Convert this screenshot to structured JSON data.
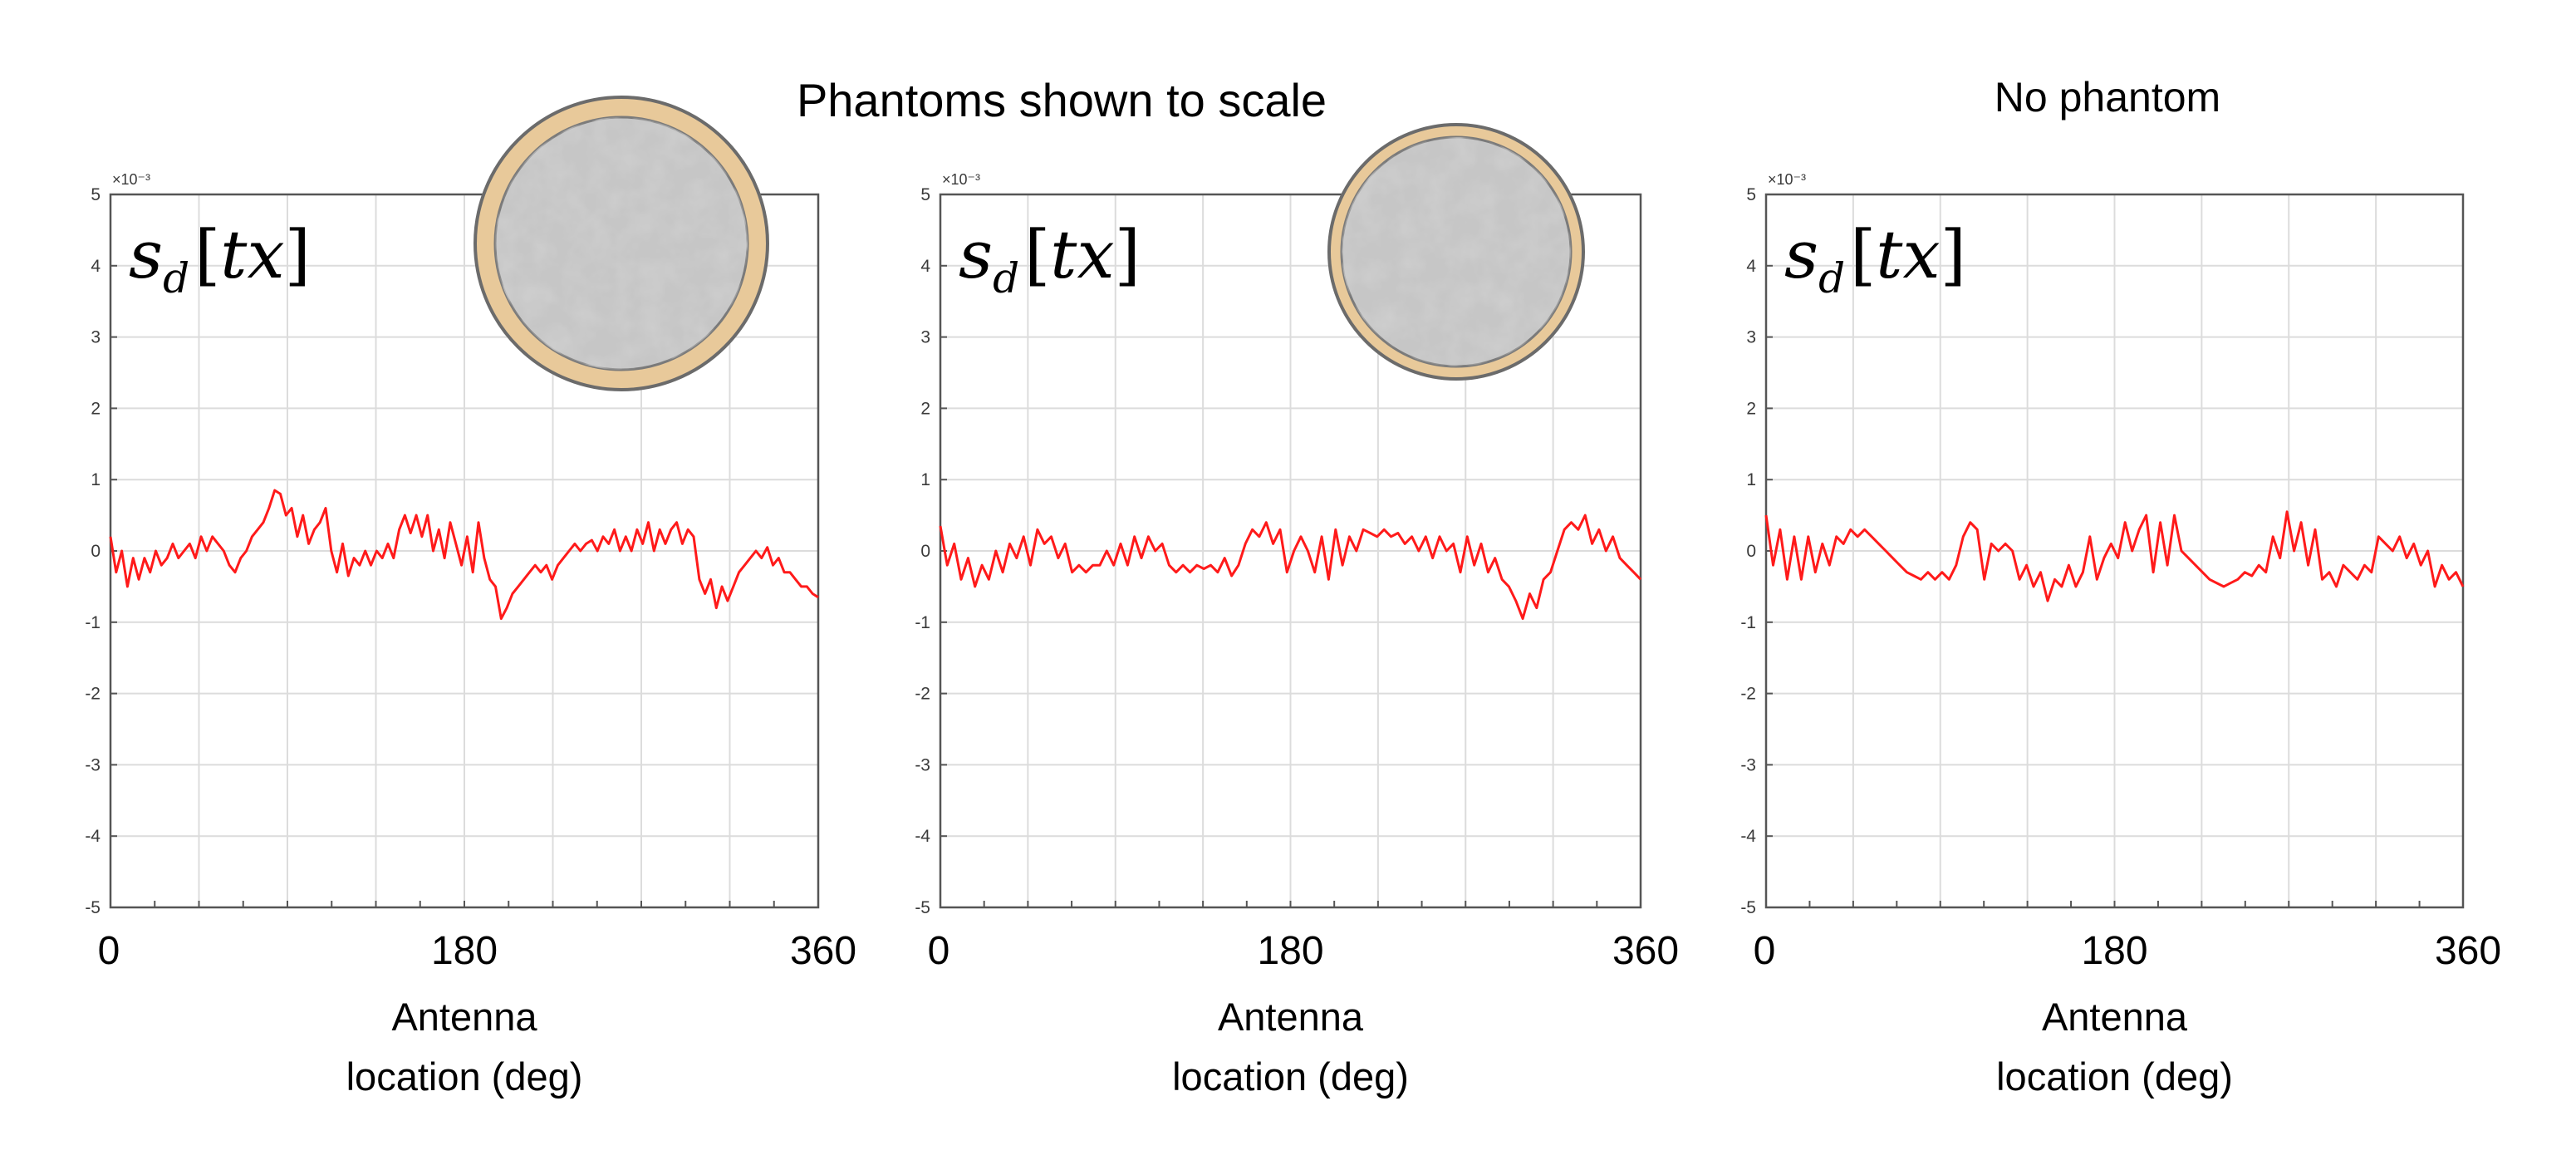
{
  "figure": {
    "heading_left": "Phantoms shown to scale",
    "heading_right": "No phantom",
    "colors": {
      "line": "#ff1a1a",
      "grid": "#dcdcdc",
      "axis": "#555555",
      "phantom_rim": "#e8c99a",
      "phantom_body": "#c9c9c9"
    }
  },
  "chart_data": [
    {
      "type": "line",
      "id": "left",
      "annotation": {
        "base": "s",
        "sub": "d",
        "open": "[",
        "var": "tx",
        "close": "]"
      },
      "exponent_label": "×10⁻³",
      "x_range": [
        0,
        360
      ],
      "y_range": [
        -5,
        5
      ],
      "y_ticks": [
        "5",
        "4",
        "3",
        "2",
        "1",
        "0",
        "-1",
        "-2",
        "-3",
        "-4",
        "-5"
      ],
      "x_tick_labels": [
        "0",
        "180",
        "360"
      ],
      "xlabel_line1": "Antenna",
      "xlabel_line2": "location (deg)",
      "phantom": "large",
      "values": [
        0.2,
        -0.3,
        0.0,
        -0.5,
        -0.1,
        -0.4,
        -0.1,
        -0.3,
        0.0,
        -0.2,
        -0.1,
        0.1,
        -0.1,
        0.0,
        0.1,
        -0.1,
        0.2,
        0.0,
        0.2,
        0.1,
        0.0,
        -0.2,
        -0.3,
        -0.1,
        0.0,
        0.2,
        0.3,
        0.4,
        0.6,
        0.85,
        0.8,
        0.5,
        0.6,
        0.2,
        0.5,
        0.1,
        0.3,
        0.4,
        0.6,
        0.0,
        -0.3,
        0.1,
        -0.35,
        -0.1,
        -0.2,
        0.0,
        -0.2,
        0.0,
        -0.1,
        0.1,
        -0.1,
        0.3,
        0.5,
        0.25,
        0.5,
        0.2,
        0.5,
        0.0,
        0.3,
        -0.1,
        0.4,
        0.1,
        -0.2,
        0.2,
        -0.3,
        0.4,
        -0.1,
        -0.4,
        -0.5,
        -0.95,
        -0.8,
        -0.6,
        -0.5,
        -0.4,
        -0.3,
        -0.2,
        -0.3,
        -0.2,
        -0.4,
        -0.2,
        -0.1,
        0.0,
        0.1,
        0.0,
        0.1,
        0.15,
        0.0,
        0.2,
        0.1,
        0.3,
        0.0,
        0.2,
        0.0,
        0.3,
        0.1,
        0.4,
        0.0,
        0.3,
        0.1,
        0.3,
        0.4,
        0.1,
        0.3,
        0.2,
        -0.4,
        -0.6,
        -0.4,
        -0.8,
        -0.5,
        -0.7,
        -0.5,
        -0.3,
        -0.2,
        -0.1,
        0.0,
        -0.1,
        0.05,
        -0.2,
        -0.1,
        -0.3,
        -0.3,
        -0.4,
        -0.5,
        -0.5,
        -0.6,
        -0.65
      ]
    },
    {
      "type": "line",
      "id": "middle",
      "annotation": {
        "base": "s",
        "sub": "d",
        "open": "[",
        "var": "tx",
        "close": "]"
      },
      "exponent_label": "×10⁻³",
      "x_range": [
        0,
        360
      ],
      "y_range": [
        -5,
        5
      ],
      "y_ticks": [
        "5",
        "4",
        "3",
        "2",
        "1",
        "0",
        "-1",
        "-2",
        "-3",
        "-4",
        "-5"
      ],
      "x_tick_labels": [
        "0",
        "180",
        "360"
      ],
      "xlabel_line1": "Antenna",
      "xlabel_line2": "location (deg)",
      "phantom": "small",
      "values": [
        0.35,
        -0.2,
        0.1,
        -0.4,
        -0.1,
        -0.5,
        -0.2,
        -0.4,
        0.0,
        -0.3,
        0.1,
        -0.1,
        0.2,
        -0.2,
        0.3,
        0.1,
        0.2,
        -0.1,
        0.1,
        -0.3,
        -0.2,
        -0.3,
        -0.2,
        -0.2,
        0.0,
        -0.2,
        0.1,
        -0.2,
        0.2,
        -0.1,
        0.2,
        0.0,
        0.1,
        -0.2,
        -0.3,
        -0.2,
        -0.3,
        -0.2,
        -0.25,
        -0.2,
        -0.3,
        -0.1,
        -0.35,
        -0.2,
        0.1,
        0.3,
        0.2,
        0.4,
        0.1,
        0.3,
        -0.3,
        0.0,
        0.2,
        0.0,
        -0.3,
        0.2,
        -0.4,
        0.3,
        -0.2,
        0.2,
        0.0,
        0.3,
        0.25,
        0.2,
        0.3,
        0.2,
        0.25,
        0.1,
        0.2,
        0.0,
        0.2,
        -0.1,
        0.2,
        0.0,
        0.1,
        -0.3,
        0.2,
        -0.2,
        0.1,
        -0.3,
        -0.1,
        -0.4,
        -0.5,
        -0.7,
        -0.95,
        -0.6,
        -0.8,
        -0.4,
        -0.3,
        0.0,
        0.3,
        0.4,
        0.3,
        0.5,
        0.1,
        0.3,
        0.0,
        0.2,
        -0.1,
        -0.2,
        -0.3,
        -0.4
      ]
    },
    {
      "type": "line",
      "id": "right",
      "annotation": {
        "base": "s",
        "sub": "d",
        "open": "[",
        "var": "tx",
        "close": "]"
      },
      "exponent_label": "×10⁻³",
      "x_range": [
        0,
        360
      ],
      "y_range": [
        -5,
        5
      ],
      "y_ticks": [
        "5",
        "4",
        "3",
        "2",
        "1",
        "0",
        "-1",
        "-2",
        "-3",
        "-4",
        "-5"
      ],
      "x_tick_labels": [
        "0",
        "180",
        "360"
      ],
      "xlabel_line1": "Antenna",
      "xlabel_line2": "location (deg)",
      "phantom": "none",
      "values": [
        0.5,
        -0.2,
        0.3,
        -0.4,
        0.2,
        -0.4,
        0.2,
        -0.3,
        0.1,
        -0.2,
        0.2,
        0.1,
        0.3,
        0.2,
        0.3,
        0.2,
        0.1,
        0.0,
        -0.1,
        -0.2,
        -0.3,
        -0.35,
        -0.4,
        -0.3,
        -0.4,
        -0.3,
        -0.4,
        -0.2,
        0.2,
        0.4,
        0.3,
        -0.4,
        0.1,
        0.0,
        0.1,
        0.0,
        -0.4,
        -0.2,
        -0.5,
        -0.3,
        -0.7,
        -0.4,
        -0.5,
        -0.2,
        -0.5,
        -0.3,
        0.2,
        -0.4,
        -0.1,
        0.1,
        -0.1,
        0.4,
        0.0,
        0.3,
        0.5,
        -0.3,
        0.4,
        -0.2,
        0.5,
        0.0,
        -0.1,
        -0.2,
        -0.3,
        -0.4,
        -0.45,
        -0.5,
        -0.45,
        -0.4,
        -0.3,
        -0.35,
        -0.2,
        -0.3,
        0.2,
        -0.1,
        0.55,
        0.0,
        0.4,
        -0.2,
        0.3,
        -0.4,
        -0.3,
        -0.5,
        -0.2,
        -0.3,
        -0.4,
        -0.2,
        -0.3,
        0.2,
        0.1,
        0.0,
        0.2,
        -0.1,
        0.1,
        -0.2,
        0.0,
        -0.5,
        -0.2,
        -0.4,
        -0.3,
        -0.5
      ]
    }
  ]
}
